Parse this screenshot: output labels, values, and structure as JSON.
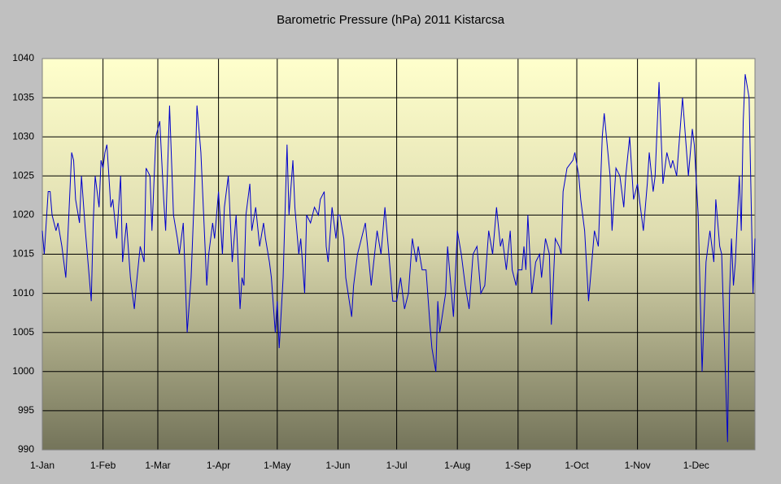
{
  "chart_data": {
    "type": "line",
    "title": "Barometric Pressure (hPa) 2011 Kistarcsa",
    "x": [
      0,
      1,
      3,
      4,
      5,
      7,
      8,
      10,
      12,
      13,
      15,
      16,
      17,
      19,
      20,
      22,
      23,
      25,
      26,
      27,
      29,
      30,
      31,
      32,
      33,
      35,
      36,
      38,
      40,
      41,
      43,
      45,
      47,
      48,
      50,
      52,
      53,
      55,
      56,
      58,
      60,
      62,
      63,
      65,
      67,
      69,
      70,
      72,
      74,
      76,
      78,
      79,
      81,
      84,
      85,
      87,
      88,
      90,
      92,
      93,
      95,
      97,
      99,
      101,
      102,
      103,
      104,
      106,
      107,
      109,
      111,
      113,
      114,
      116,
      117,
      119,
      120,
      121,
      123,
      125,
      126,
      128,
      129,
      131,
      132,
      134,
      135,
      137,
      139,
      141,
      142,
      144,
      145,
      146,
      148,
      150,
      151,
      152,
      154,
      155,
      158,
      159,
      161,
      165,
      168,
      171,
      173,
      175,
      178,
      179,
      181,
      183,
      185,
      187,
      189,
      191,
      192,
      194,
      196,
      198,
      199,
      201,
      202,
      203,
      206,
      207,
      210,
      212,
      214,
      216,
      218,
      220,
      222,
      224,
      226,
      228,
      230,
      232,
      234,
      235,
      237,
      239,
      240,
      242,
      243,
      245,
      246,
      247,
      248,
      250,
      252,
      254,
      255,
      257,
      259,
      260,
      262,
      264,
      265,
      266,
      268,
      271,
      272,
      274,
      275,
      277,
      279,
      282,
      284,
      286,
      287,
      290,
      291,
      293,
      295,
      297,
      298,
      300,
      302,
      304,
      307,
      309,
      310,
      312,
      313,
      315,
      317,
      319,
      321,
      322,
      324,
      327,
      330,
      332,
      333,
      335,
      337,
      339,
      341,
      343,
      344,
      346,
      347,
      350,
      351,
      352,
      353,
      354,
      356,
      357,
      358,
      359,
      361,
      363,
      364
    ],
    "series": [
      {
        "color": "#0000cc",
        "values": [
          1018,
          1015,
          1023,
          1023,
          1020,
          1018,
          1019,
          1016,
          1012,
          1017,
          1028,
          1027,
          1022,
          1019,
          1025,
          1018,
          1015,
          1009,
          1019,
          1025,
          1021,
          1027,
          1026,
          1028,
          1029,
          1021,
          1022,
          1017,
          1025,
          1014,
          1019,
          1012,
          1008,
          1011,
          1016,
          1014,
          1026,
          1025,
          1018,
          1030,
          1032,
          1022,
          1018,
          1034,
          1020,
          1017,
          1015,
          1019,
          1005,
          1012,
          1025,
          1034,
          1028,
          1011,
          1015,
          1019,
          1017,
          1023,
          1015,
          1021,
          1025,
          1014,
          1020,
          1008,
          1012,
          1011,
          1020,
          1024,
          1018,
          1021,
          1016,
          1019,
          1017,
          1014,
          1012,
          1005,
          1009,
          1003,
          1012,
          1029,
          1020,
          1027,
          1021,
          1015,
          1017,
          1010,
          1020,
          1019,
          1021,
          1020,
          1022,
          1023,
          1016,
          1014,
          1021,
          1017,
          1020,
          1020,
          1017,
          1012,
          1007,
          1011,
          1015,
          1019,
          1011,
          1018,
          1015,
          1021,
          1012,
          1009,
          1009,
          1012,
          1008,
          1010,
          1017,
          1014,
          1016,
          1013,
          1013,
          1006,
          1003,
          1000,
          1009,
          1005,
          1010,
          1016,
          1007,
          1018,
          1015,
          1011,
          1008,
          1015,
          1016,
          1010,
          1011,
          1018,
          1015,
          1021,
          1016,
          1017,
          1013,
          1018,
          1013,
          1011,
          1013,
          1013,
          1016,
          1013,
          1020,
          1010,
          1014,
          1015,
          1012,
          1017,
          1015,
          1006,
          1017,
          1016,
          1015,
          1023,
          1026,
          1027,
          1028,
          1025,
          1022,
          1018,
          1009,
          1018,
          1016,
          1030,
          1033,
          1025,
          1018,
          1026,
          1025,
          1021,
          1025,
          1030,
          1022,
          1024,
          1018,
          1024,
          1028,
          1023,
          1025,
          1037,
          1024,
          1028,
          1026,
          1027,
          1025,
          1035,
          1025,
          1031,
          1029,
          1020,
          1000,
          1014,
          1018,
          1014,
          1022,
          1016,
          1015,
          991,
          1010,
          1017,
          1011,
          1014,
          1025,
          1018,
          1032,
          1038,
          1035,
          1010,
          1017
        ]
      }
    ],
    "xlim": [
      0,
      364
    ],
    "xticks": [
      {
        "value": 0,
        "label": "1-Jan"
      },
      {
        "value": 31,
        "label": "1-Feb"
      },
      {
        "value": 59,
        "label": "1-Mar"
      },
      {
        "value": 90,
        "label": "1-Apr"
      },
      {
        "value": 120,
        "label": "1-May"
      },
      {
        "value": 151,
        "label": "1-Jun"
      },
      {
        "value": 181,
        "label": "1-Jul"
      },
      {
        "value": 212,
        "label": "1-Aug"
      },
      {
        "value": 243,
        "label": "1-Sep"
      },
      {
        "value": 273,
        "label": "1-Oct"
      },
      {
        "value": 304,
        "label": "1-Nov"
      },
      {
        "value": 334,
        "label": "1-Dec"
      }
    ],
    "ylim": [
      990,
      1040
    ],
    "yticks": [
      990,
      995,
      1000,
      1005,
      1010,
      1015,
      1020,
      1025,
      1030,
      1035,
      1040
    ],
    "grid": true
  }
}
